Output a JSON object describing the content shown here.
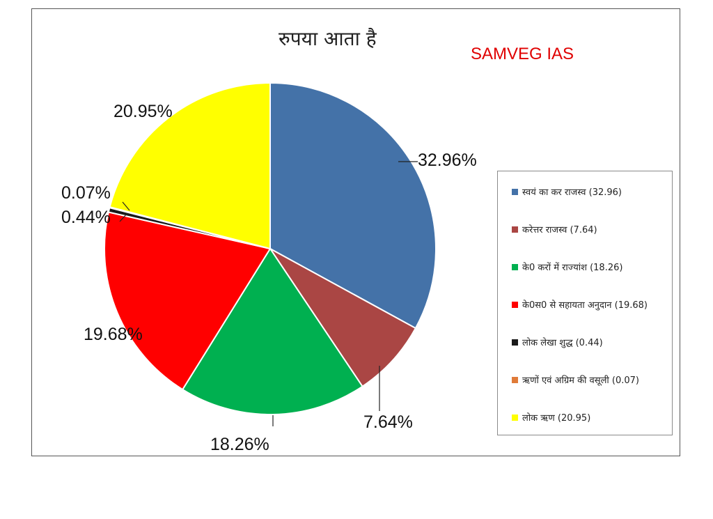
{
  "title": "रुपया आता है",
  "brand": "SAMVEG IAS",
  "chart_data": {
    "type": "pie",
    "title": "रुपया आता है",
    "slices": [
      {
        "legend": "स्वयं का कर राजस्व (32.96)",
        "value": 32.96,
        "label": "32.96%",
        "color": "#4472a8"
      },
      {
        "legend": "करेत्तर राजस्व (7.64)",
        "value": 7.64,
        "label": "7.64%",
        "color": "#aa4644"
      },
      {
        "legend": "के0 करों में राज्यांश (18.26)",
        "value": 18.26,
        "label": "18.26%",
        "color": "#00b050"
      },
      {
        "legend": "के0स0 से सहायता अनुदान (19.68)",
        "value": 19.68,
        "label": "19.68%",
        "color": "#ff0000"
      },
      {
        "legend": "लोक लेखा शुद्ध (0.44)",
        "value": 0.44,
        "label": "0.44%",
        "color": "#1a1a1a"
      },
      {
        "legend": "ऋणों एवं अग्रिम की वसूली (0.07)",
        "value": 0.07,
        "label": "0.07%",
        "color": "#e07b39"
      },
      {
        "legend": "लोक ऋण (20.95)",
        "value": 20.95,
        "label": "20.95%",
        "color": "#ffff00"
      }
    ],
    "legend_position": "right"
  }
}
